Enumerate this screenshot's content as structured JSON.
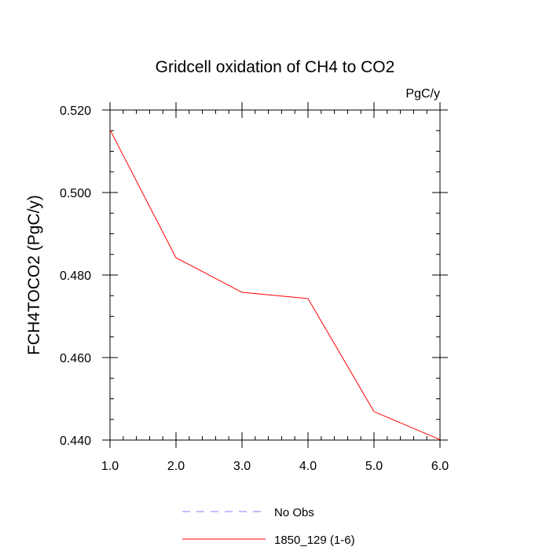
{
  "chart_data": {
    "type": "line",
    "title": "Gridcell oxidation of CH4 to CO2",
    "units": "PgC/y",
    "ylabel": "FCH4TOCO2  (PgC/y)",
    "xlabel": "",
    "xlim": [
      1.0,
      6.0
    ],
    "ylim": [
      0.44,
      0.52
    ],
    "x_ticks": [
      1.0,
      2.0,
      3.0,
      4.0,
      5.0,
      6.0
    ],
    "x_tick_labels": [
      "1.0",
      "2.0",
      "3.0",
      "4.0",
      "5.0",
      "6.0"
    ],
    "y_ticks": [
      0.44,
      0.46,
      0.48,
      0.5,
      0.52
    ],
    "y_tick_labels": [
      "0.440",
      "0.460",
      "0.480",
      "0.500",
      "0.520"
    ],
    "grid": false,
    "legend_position": "bottom-center",
    "series": [
      {
        "name": "No Obs",
        "color": "#8080ff",
        "style": "dashed",
        "x": [],
        "y": []
      },
      {
        "name": "1850_129 (1-6)",
        "color": "#ff0000",
        "style": "solid",
        "x": [
          1.0,
          2.0,
          3.0,
          4.0,
          5.0,
          6.0
        ],
        "y": [
          0.5152,
          0.4842,
          0.4758,
          0.4743,
          0.4469,
          0.4401
        ]
      }
    ]
  }
}
